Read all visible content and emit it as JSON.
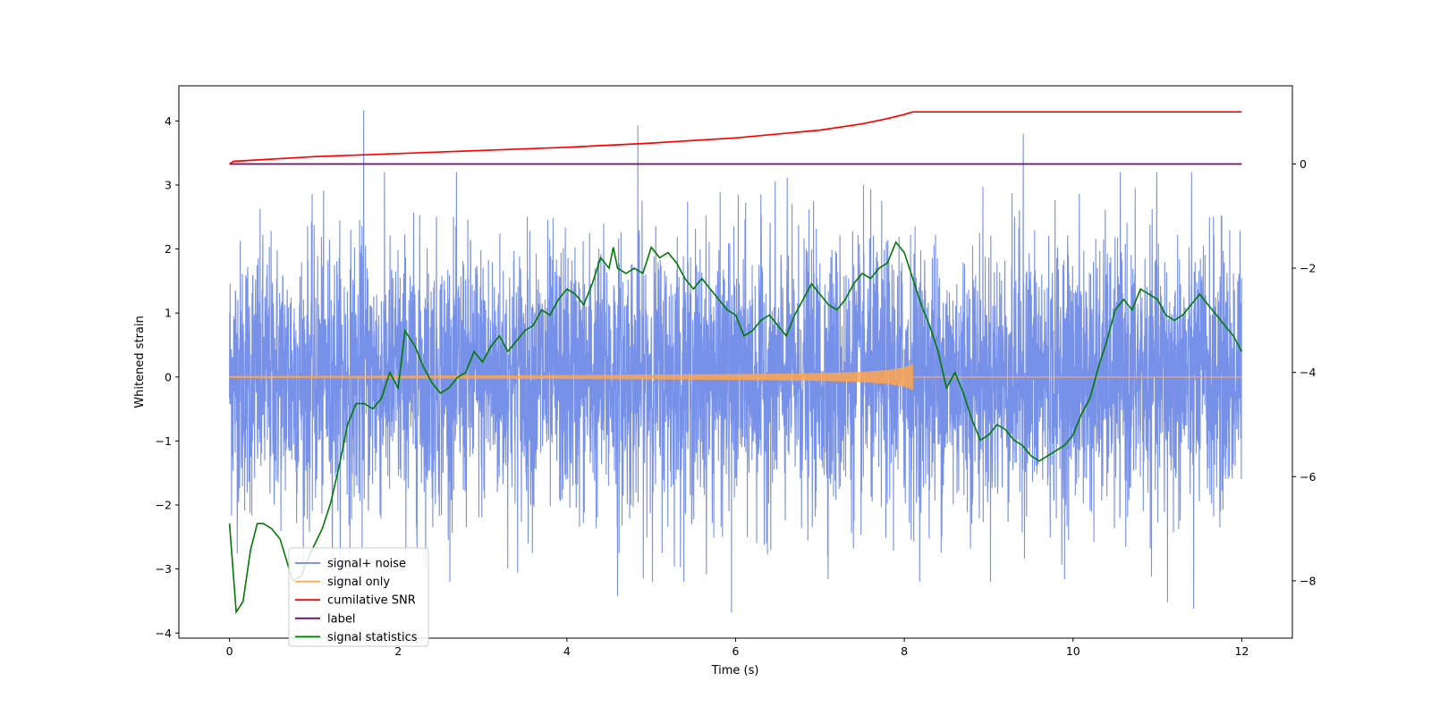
{
  "chart_data": {
    "type": "line",
    "title": "",
    "xlabel": "Time (s)",
    "ylabel": "Whitened strain",
    "ylabel_right": "",
    "xlim": [
      -0.6,
      12.6
    ],
    "ylim": [
      -4.08,
      4.55
    ],
    "ylim_right": [
      -9.1,
      1.5
    ],
    "x_ticks": [
      0,
      2,
      4,
      6,
      8,
      10,
      12
    ],
    "y_ticks": [
      -4,
      -3,
      -2,
      -1,
      0,
      1,
      2,
      3,
      4
    ],
    "y_right_ticks": [
      -8,
      -6,
      -4,
      -2,
      0
    ],
    "grid": false,
    "legend_position": "lower-left",
    "colors": {
      "signal_noise": "#6b87e6",
      "signal_only": "#ffa64d",
      "cumulative_snr": "#ff0000",
      "label": "#6a0d6e",
      "statistics": "#007a00"
    },
    "legend": [
      {
        "name": "signal+ noise",
        "color": "#6b87e6"
      },
      {
        "name": "signal only",
        "color": "#ffa64d"
      },
      {
        "name": "cumilative SNR",
        "color": "#ff0000"
      },
      {
        "name": "label",
        "color": "#6a0d6e"
      },
      {
        "name": "signal statistics",
        "color": "#007a00"
      }
    ],
    "series": [
      {
        "name": "signal+ noise",
        "axis": "left",
        "description": "whitened strain noise time series, 0–12 s, approx Gaussian with std ~1.05",
        "x_range": [
          0,
          12
        ],
        "std": 1.05,
        "noted_peaks": [
          {
            "x": 1.59,
            "y": 4.17
          },
          {
            "x": 4.84,
            "y": 3.93
          },
          {
            "x": 9.41,
            "y": 3.8
          },
          {
            "x": 5.95,
            "y": -3.68
          },
          {
            "x": 11.43,
            "y": -3.62
          },
          {
            "x": 4.6,
            "y": -3.42
          },
          {
            "x": 11.12,
            "y": -3.52
          }
        ]
      },
      {
        "name": "signal only",
        "axis": "left",
        "description": "chirp signal envelope, grows until merger at ~8.1 s then zero",
        "envelope": {
          "x": [
            0,
            2,
            4,
            6,
            7,
            7.5,
            7.8,
            8.0,
            8.1,
            8.11,
            12
          ],
          "amp": [
            0.015,
            0.02,
            0.03,
            0.045,
            0.06,
            0.08,
            0.11,
            0.15,
            0.2,
            0.0,
            0.0
          ]
        }
      },
      {
        "name": "cumilative SNR",
        "axis": "right",
        "x": [
          0,
          0.05,
          1,
          2,
          3,
          4,
          5,
          6,
          7,
          7.5,
          7.8,
          8.0,
          8.1,
          12
        ],
        "values": [
          0.0,
          0.05,
          0.14,
          0.2,
          0.26,
          0.32,
          0.4,
          0.5,
          0.65,
          0.77,
          0.87,
          0.95,
          1.0,
          1.0
        ]
      },
      {
        "name": "label",
        "axis": "right",
        "x": [
          0,
          12
        ],
        "values": [
          0.0,
          0.0
        ]
      },
      {
        "name": "signal statistics",
        "axis": "right",
        "x": [
          0,
          0.08,
          0.16,
          0.25,
          0.33,
          0.4,
          0.5,
          0.6,
          0.75,
          0.85,
          0.95,
          1.1,
          1.2,
          1.3,
          1.4,
          1.5,
          1.6,
          1.7,
          1.8,
          1.9,
          2.0,
          2.08,
          2.2,
          2.3,
          2.4,
          2.5,
          2.6,
          2.7,
          2.8,
          2.9,
          3.0,
          3.1,
          3.2,
          3.3,
          3.4,
          3.5,
          3.6,
          3.7,
          3.8,
          3.9,
          4.0,
          4.1,
          4.2,
          4.3,
          4.4,
          4.5,
          4.55,
          4.6,
          4.7,
          4.8,
          4.9,
          5.0,
          5.1,
          5.2,
          5.3,
          5.4,
          5.5,
          5.6,
          5.7,
          5.8,
          5.9,
          6.0,
          6.1,
          6.2,
          6.3,
          6.4,
          6.5,
          6.6,
          6.7,
          6.8,
          6.9,
          7.0,
          7.1,
          7.2,
          7.3,
          7.4,
          7.5,
          7.6,
          7.7,
          7.8,
          7.9,
          8.0,
          8.1,
          8.2,
          8.3,
          8.4,
          8.5,
          8.6,
          8.7,
          8.8,
          8.9,
          9.0,
          9.1,
          9.2,
          9.3,
          9.4,
          9.5,
          9.6,
          9.7,
          9.8,
          9.9,
          10.0,
          10.1,
          10.2,
          10.3,
          10.4,
          10.5,
          10.6,
          10.7,
          10.8,
          10.9,
          11.0,
          11.1,
          11.2,
          11.3,
          11.4,
          11.5,
          11.6,
          11.7,
          11.8,
          11.9,
          12.0
        ],
        "values": [
          -6.9,
          -8.6,
          -8.4,
          -7.4,
          -6.9,
          -6.9,
          -7.0,
          -7.2,
          -8.0,
          -7.9,
          -7.5,
          -7.0,
          -6.5,
          -5.8,
          -5.0,
          -4.6,
          -4.6,
          -4.7,
          -4.5,
          -4.0,
          -4.3,
          -3.2,
          -3.5,
          -3.9,
          -4.2,
          -4.4,
          -4.3,
          -4.1,
          -4.0,
          -3.6,
          -3.8,
          -3.5,
          -3.3,
          -3.6,
          -3.4,
          -3.2,
          -3.1,
          -2.8,
          -2.9,
          -2.6,
          -2.4,
          -2.5,
          -2.7,
          -2.3,
          -1.8,
          -2.0,
          -1.6,
          -2.0,
          -2.1,
          -2.0,
          -2.1,
          -1.6,
          -1.8,
          -1.7,
          -1.9,
          -2.2,
          -2.4,
          -2.2,
          -2.4,
          -2.6,
          -2.8,
          -2.9,
          -3.3,
          -3.2,
          -3.0,
          -2.9,
          -3.1,
          -3.3,
          -2.9,
          -2.6,
          -2.3,
          -2.5,
          -2.7,
          -2.8,
          -2.6,
          -2.3,
          -2.1,
          -2.2,
          -2.0,
          -1.9,
          -1.5,
          -1.7,
          -2.2,
          -2.7,
          -3.1,
          -3.6,
          -4.3,
          -4.0,
          -4.4,
          -4.9,
          -5.3,
          -5.2,
          -5.0,
          -5.1,
          -5.3,
          -5.4,
          -5.6,
          -5.7,
          -5.6,
          -5.5,
          -5.4,
          -5.2,
          -4.8,
          -4.5,
          -3.9,
          -3.4,
          -2.8,
          -2.6,
          -2.8,
          -2.4,
          -2.5,
          -2.6,
          -2.9,
          -3.0,
          -2.9,
          -2.7,
          -2.5,
          -2.7,
          -2.9,
          -3.1,
          -3.3,
          -3.6
        ]
      }
    ]
  }
}
